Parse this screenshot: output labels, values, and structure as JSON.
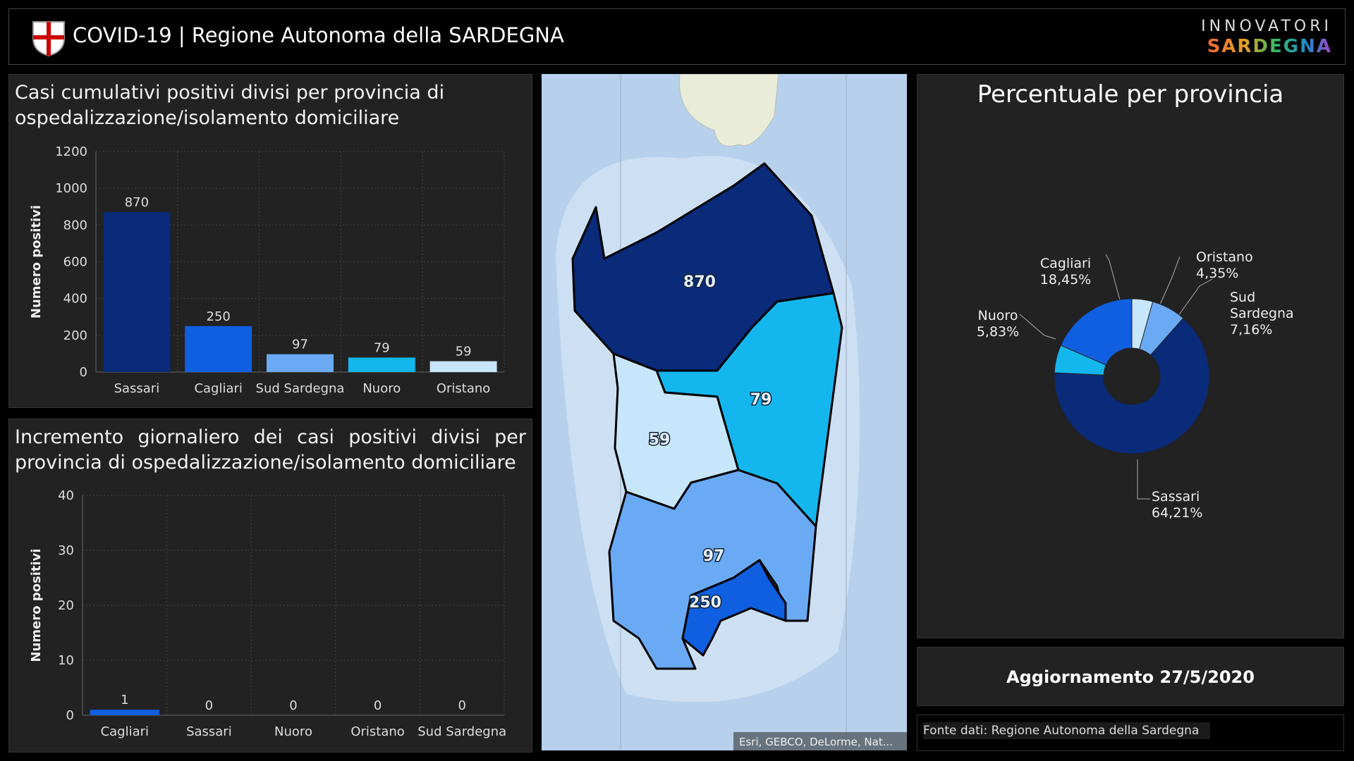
{
  "header": {
    "title": "COVID-19 | Regione Autonoma della SARDEGNA",
    "brand_top": "INNOVATORI",
    "brand_bottom": "SARDEGNA"
  },
  "chart_data": [
    {
      "type": "bar",
      "title": "Casi cumulativi positivi divisi per provincia di ospedalizzazione/isolamento domiciliare",
      "ylabel": "Numero positivi",
      "categories": [
        "Sassari",
        "Cagliari",
        "Sud Sardegna",
        "Nuoro",
        "Oristano"
      ],
      "values": [
        870,
        250,
        97,
        79,
        59
      ],
      "colors": [
        "#0a2a7a",
        "#0f5fe0",
        "#6aaaf5",
        "#14b6ee",
        "#c8e6fb"
      ],
      "ylim": [
        0,
        1200
      ],
      "yticks": [
        0,
        200,
        400,
        600,
        800,
        1000,
        1200
      ],
      "grid": true
    },
    {
      "type": "bar",
      "title": "Incremento giornaliero dei casi positivi divisi per provincia di ospedalizzazione/isolamento domiciliare",
      "ylabel": "Numero positivi",
      "categories": [
        "Cagliari",
        "Sassari",
        "Nuoro",
        "Oristano",
        "Sud Sardegna"
      ],
      "values": [
        1,
        0,
        0,
        0,
        0
      ],
      "colors": [
        "#0f5fe0",
        "#0a2a7a",
        "#14b6ee",
        "#c8e6fb",
        "#6aaaf5"
      ],
      "ylim": [
        0,
        40
      ],
      "yticks": [
        0,
        10,
        20,
        30,
        40
      ],
      "grid": true
    },
    {
      "type": "pie",
      "title": "Percentuale per provincia",
      "categories": [
        "Oristano",
        "Sud Sardegna",
        "Sassari",
        "Nuoro",
        "Cagliari"
      ],
      "values": [
        4.35,
        7.16,
        64.21,
        5.83,
        18.45
      ],
      "value_labels": [
        "4,35%",
        "7,16%",
        "64,21%",
        "5,83%",
        "18,45%"
      ],
      "colors": [
        "#c8e6fb",
        "#6aaaf5",
        "#0a2a7a",
        "#14b6ee",
        "#0f5fe0"
      ]
    }
  ],
  "map": {
    "labels": [
      870,
      79,
      59,
      97,
      250
    ],
    "attribution": "Esri, GEBCO, DeLorme, Nat..."
  },
  "update": "Aggiornamento 27/5/2020",
  "source": "Fonte dati: Regione Autonoma della Sardegna"
}
